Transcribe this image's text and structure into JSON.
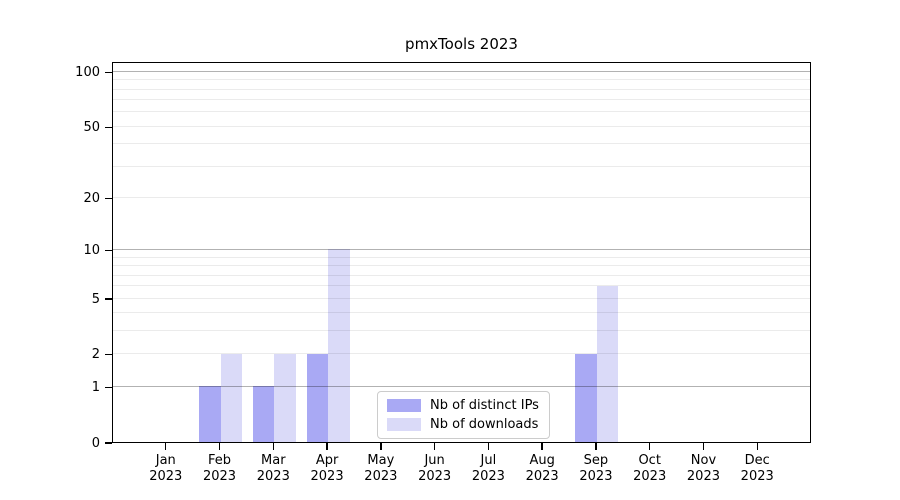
{
  "chart_data": {
    "type": "bar",
    "title": "pmxTools 2023",
    "categories": [
      "Jan",
      "Feb",
      "Mar",
      "Apr",
      "May",
      "Jun",
      "Jul",
      "Aug",
      "Sep",
      "Oct",
      "Nov",
      "Dec"
    ],
    "category_year": "2023",
    "series": [
      {
        "name": "Nb of distinct IPs",
        "color": "#a9a9f4",
        "values": [
          0,
          1,
          1,
          2,
          0,
          0,
          0,
          0,
          2,
          0,
          0,
          0
        ]
      },
      {
        "name": "Nb of downloads",
        "color": "#dadaf8",
        "values": [
          0,
          2,
          2,
          10,
          0,
          0,
          0,
          0,
          6,
          0,
          0,
          0
        ]
      }
    ],
    "xlabel": "",
    "ylabel": "",
    "yscale": "log1p",
    "ylim": [
      0,
      114
    ],
    "yticks": [
      0,
      1,
      2,
      5,
      10,
      20,
      50,
      100
    ],
    "major_gridlines": [
      1,
      10,
      100
    ],
    "minor_gridlines": [
      2,
      3,
      4,
      5,
      6,
      7,
      8,
      9,
      20,
      30,
      40,
      50,
      60,
      70,
      80,
      90
    ],
    "grid": true,
    "legend_position": "lower center"
  },
  "legend": {
    "items": [
      "Nb of distinct IPs",
      "Nb of downloads"
    ]
  }
}
